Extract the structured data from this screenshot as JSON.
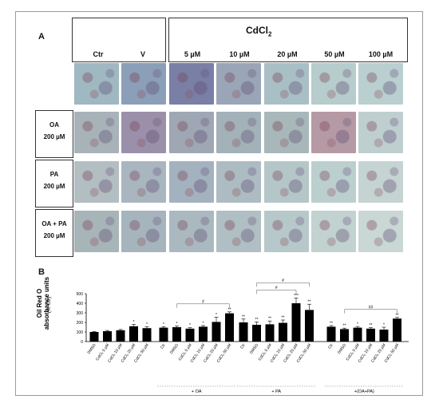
{
  "panel_a": {
    "label": "A",
    "group_title": "CdCl",
    "group_title_sub": "2",
    "columns": [
      "Ctr",
      "V",
      "5 µM",
      "10 µM",
      "20 µM",
      "50 µM",
      "100 µM"
    ],
    "rows": [
      {
        "name": "",
        "dose": ""
      },
      {
        "name": "OA",
        "dose": "200 µM"
      },
      {
        "name": "PA",
        "dose": "200 µM"
      },
      {
        "name": "OA + PA",
        "dose": "200 µM"
      }
    ]
  },
  "panel_b": {
    "label": "B",
    "ylabel_line1": "Oil Red O",
    "ylabel_line2": "absorbance units",
    "ylabel_unit": "(% Ctr)"
  },
  "chart_data": {
    "type": "bar",
    "ylabel": "Oil Red O absorbance units",
    "yunit": "(% Ctr)",
    "ylim": [
      0,
      500
    ],
    "yticks": [
      "0",
      "100",
      "200",
      "300",
      "400",
      "500"
    ],
    "groups": [
      {
        "caption": "",
        "categories": [
          "DMSO",
          "CdCl₂ 5 µM",
          "CdCl₂ 10 µM",
          "CdCl₂ 20 µM",
          "CdCl₂ 50 µM"
        ],
        "values": [
          100,
          108,
          118,
          160,
          140
        ],
        "errors": [
          5,
          8,
          8,
          20,
          15
        ],
        "marks": [
          "",
          "",
          "",
          "*",
          "*"
        ],
        "bracket": null
      },
      {
        "caption": "+ OA",
        "categories": [
          "Ctr",
          "DMSO",
          "CdCl₂ 5 µM",
          "CdCl₂ 10 µM",
          "CdCl₂ 20 µM",
          "CdCl₂ 50 µM"
        ],
        "values": [
          145,
          150,
          135,
          155,
          205,
          295
        ],
        "errors": [
          10,
          12,
          10,
          12,
          50,
          15
        ],
        "marks": [
          "*",
          "*",
          "*",
          "*",
          "*",
          "**"
        ],
        "bracket": {
          "from": 1,
          "to": 5,
          "label": "#"
        }
      },
      {
        "caption": "+ PA",
        "categories": [
          "Ctr",
          "DMSO",
          "CdCl₂ 5 µM",
          "CdCl₂ 10 µM",
          "CdCl₂ 20 µM",
          "CdCl₂ 50 µM"
        ],
        "values": [
          200,
          175,
          180,
          195,
          400,
          330
        ],
        "errors": [
          35,
          30,
          35,
          30,
          55,
          60
        ],
        "marks": [
          "**",
          "**",
          "**",
          "**",
          "***",
          "**"
        ],
        "bracket": [
          {
            "from": 1,
            "to": 4,
            "label": "#"
          },
          {
            "from": 1,
            "to": 5,
            "label": "#"
          }
        ]
      },
      {
        "caption": "+(OA+PA)",
        "categories": [
          "Ctr",
          "DMSO",
          "CdCl₂ 5 µM",
          "CdCl₂ 10 µM",
          "CdCl₂ 20 µM",
          "CdCl₂ 50 µM"
        ],
        "values": [
          155,
          130,
          145,
          135,
          125,
          240
        ],
        "errors": [
          12,
          10,
          12,
          10,
          25,
          12
        ],
        "marks": [
          "**",
          "**",
          "*",
          "**",
          "*",
          "**"
        ],
        "bracket": {
          "from": 1,
          "to": 5,
          "label": "##"
        }
      }
    ],
    "colors": {
      "bar": "#000000"
    }
  }
}
